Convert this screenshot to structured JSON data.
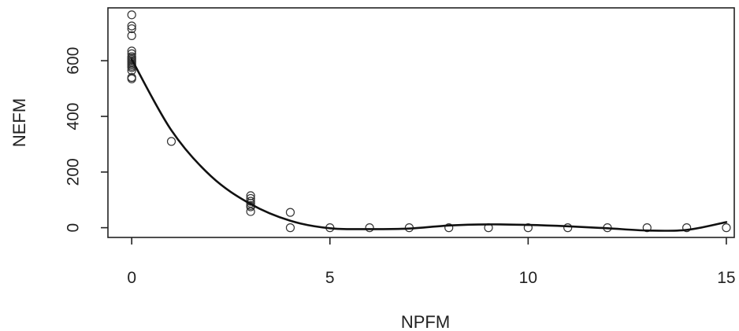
{
  "chart_data": {
    "type": "scatter",
    "xlabel": "NPFM",
    "ylabel": "NEFM",
    "xlim": [
      -0.6,
      15.2
    ],
    "ylim": [
      -35,
      790
    ],
    "xticks": [
      0,
      5,
      10,
      15
    ],
    "yticks": [
      0,
      200,
      400,
      600
    ],
    "grid": false,
    "series": [
      {
        "kind": "points",
        "marker": "open-circle",
        "points": [
          [
            0,
            765
          ],
          [
            0,
            725
          ],
          [
            0,
            715
          ],
          [
            0,
            690
          ],
          [
            0,
            635
          ],
          [
            0,
            625
          ],
          [
            0,
            615
          ],
          [
            0,
            610
          ],
          [
            0,
            605
          ],
          [
            0,
            600
          ],
          [
            0,
            595
          ],
          [
            0,
            590
          ],
          [
            0,
            585
          ],
          [
            0,
            580
          ],
          [
            0,
            575
          ],
          [
            0,
            565
          ],
          [
            0,
            540
          ],
          [
            0,
            535
          ],
          [
            1,
            310
          ],
          [
            3,
            115
          ],
          [
            3,
            105
          ],
          [
            3,
            95
          ],
          [
            3,
            88
          ],
          [
            3,
            80
          ],
          [
            3,
            75
          ],
          [
            3,
            58
          ],
          [
            4,
            55
          ],
          [
            4,
            0
          ],
          [
            5,
            0
          ],
          [
            6,
            0
          ],
          [
            7,
            0
          ],
          [
            8,
            0
          ],
          [
            9,
            0
          ],
          [
            10,
            0
          ],
          [
            11,
            0
          ],
          [
            12,
            0
          ],
          [
            13,
            0
          ],
          [
            14,
            0
          ],
          [
            15,
            0
          ]
        ]
      },
      {
        "kind": "smooth-line",
        "points": [
          [
            0,
            605
          ],
          [
            1,
            350
          ],
          [
            2,
            185
          ],
          [
            3,
            85
          ],
          [
            4,
            25
          ],
          [
            5,
            -2
          ],
          [
            6,
            -5
          ],
          [
            7,
            -3
          ],
          [
            8,
            8
          ],
          [
            9,
            12
          ],
          [
            10,
            10
          ],
          [
            11,
            5
          ],
          [
            12,
            -2
          ],
          [
            13,
            -10
          ],
          [
            14,
            -8
          ],
          [
            15,
            20
          ]
        ]
      }
    ]
  }
}
